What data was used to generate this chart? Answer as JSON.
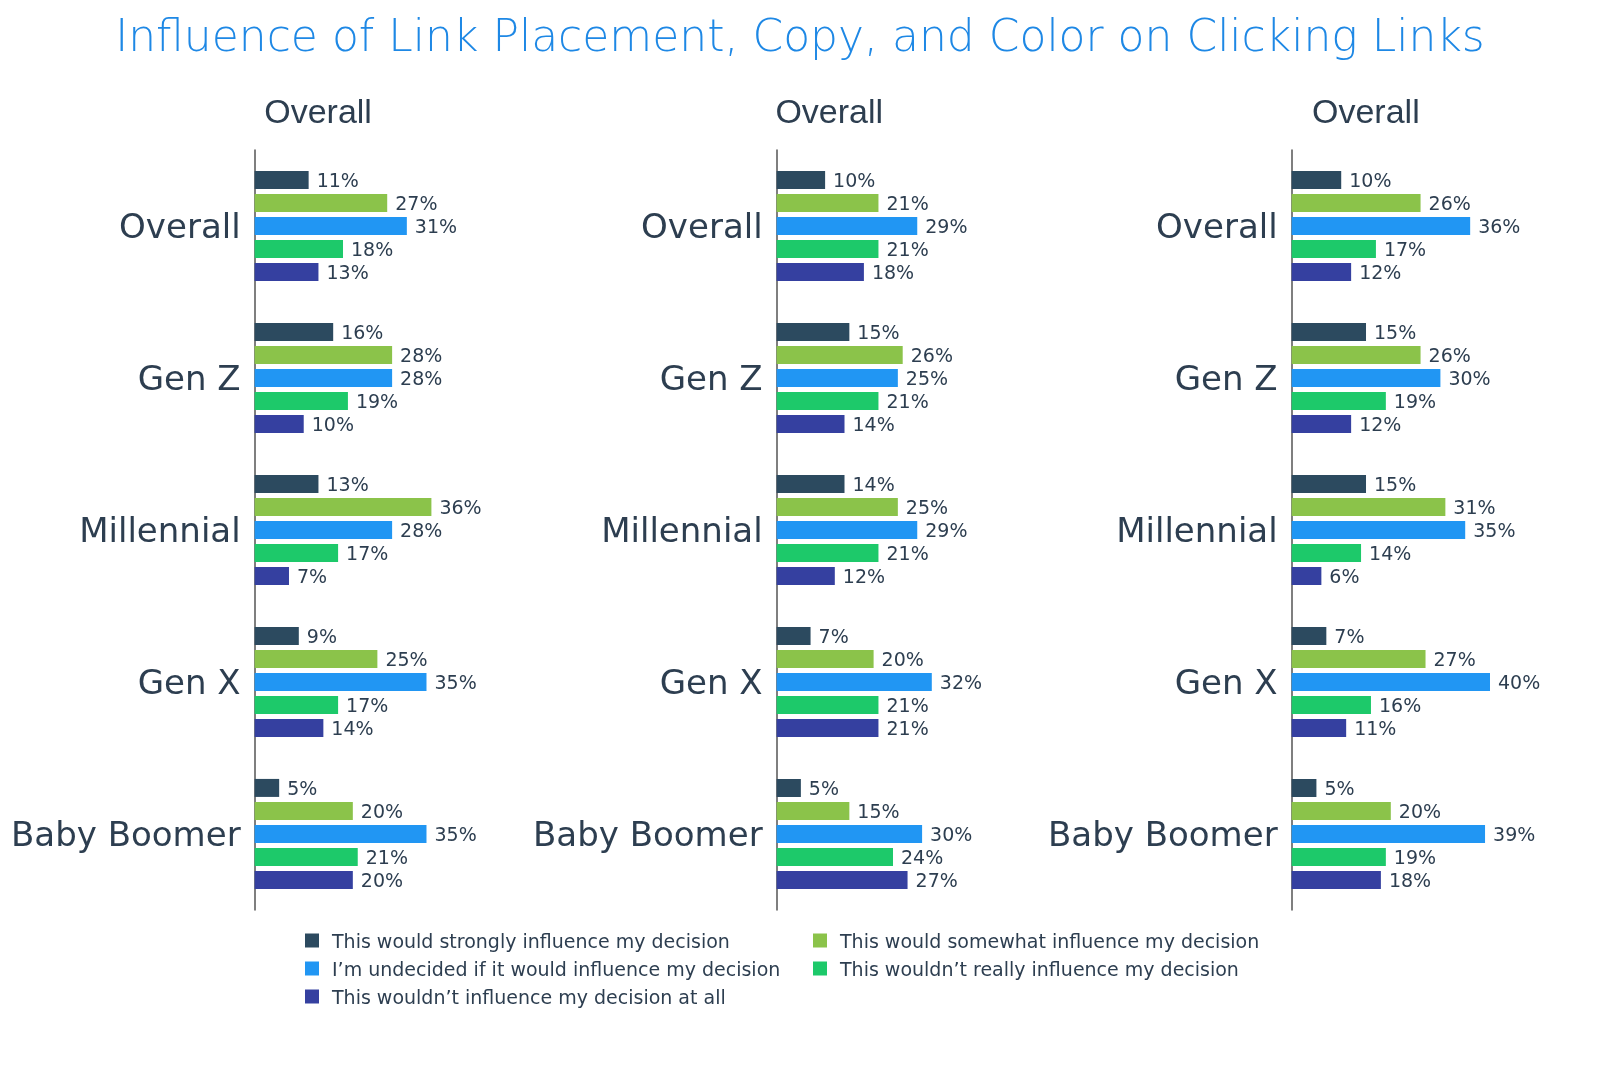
{
  "chart_data": [
    {
      "type": "bar",
      "orientation": "horizontal",
      "title": "Influence of Link Placement, Copy, and Color on Clicking Links",
      "subtitle": "Overall",
      "legend": "bottom",
      "categories": [
        "Overall",
        "Gen Z",
        "Millennial",
        "Gen X",
        "Baby Boomer"
      ],
      "series": [
        {
          "name": "This would strongly influence my decision",
          "color": "#2c4a5f",
          "values": [
            11,
            16,
            13,
            9,
            5
          ],
          "value_labels": [
            "11%",
            "16%",
            "13%",
            "9%",
            "5%"
          ]
        },
        {
          "name": "This would somewhat influence my decision",
          "color": "#8bc34a",
          "values": [
            27,
            28,
            36,
            25,
            20
          ],
          "value_labels": [
            "27%",
            "28%",
            "36%",
            "25%",
            "20%"
          ]
        },
        {
          "name": "I’m undecided if it would influence my decision",
          "color": "#2196f3",
          "values": [
            31,
            28,
            28,
            35,
            35
          ],
          "value_labels": [
            "31%",
            "28%",
            "28%",
            "35%",
            "35%"
          ]
        },
        {
          "name": "This wouldn’t really influence my decision",
          "color": "#1dc96a",
          "values": [
            18,
            19,
            17,
            17,
            21
          ],
          "value_labels": [
            "18%",
            "19%",
            "17%",
            "17%",
            "21%"
          ]
        },
        {
          "name": "This wouldn’t influence my decision at all",
          "color": "#3540a0",
          "values": [
            13,
            10,
            7,
            14,
            20
          ],
          "value_labels": [
            "13%",
            "10%",
            "7%",
            "14%",
            "20%"
          ]
        }
      ]
    },
    {
      "type": "bar",
      "orientation": "horizontal",
      "subtitle": "Overall",
      "categories": [
        "Overall",
        "Gen Z",
        "Millennial",
        "Gen X",
        "Baby Boomer"
      ],
      "series": [
        {
          "color": "#2c4a5f",
          "values": [
            10,
            15,
            14,
            7,
            5
          ],
          "value_labels": [
            "10%",
            "15%",
            "14%",
            "7%",
            "5%"
          ]
        },
        {
          "color": "#8bc34a",
          "values": [
            21,
            26,
            25,
            20,
            15
          ],
          "value_labels": [
            "21%",
            "26%",
            "25%",
            "20%",
            "15%"
          ]
        },
        {
          "color": "#2196f3",
          "values": [
            29,
            25,
            29,
            32,
            30
          ],
          "value_labels": [
            "29%",
            "25%",
            "29%",
            "32%",
            "30%"
          ]
        },
        {
          "color": "#1dc96a",
          "values": [
            21,
            21,
            21,
            21,
            24
          ],
          "value_labels": [
            "21%",
            "21%",
            "21%",
            "21%",
            "24%"
          ]
        },
        {
          "color": "#3540a0",
          "values": [
            18,
            14,
            12,
            21,
            27
          ],
          "value_labels": [
            "18%",
            "14%",
            "12%",
            "21%",
            "27%"
          ]
        }
      ]
    },
    {
      "type": "bar",
      "orientation": "horizontal",
      "subtitle": "Overall",
      "categories": [
        "Overall",
        "Gen Z",
        "Millennial",
        "Gen X",
        "Baby Boomer"
      ],
      "series": [
        {
          "color": "#2c4a5f",
          "values": [
            10,
            15,
            15,
            7,
            5
          ],
          "value_labels": [
            "10%",
            "15%",
            "15%",
            "7%",
            "5%"
          ]
        },
        {
          "color": "#8bc34a",
          "values": [
            26,
            26,
            31,
            27,
            20
          ],
          "value_labels": [
            "26%",
            "26%",
            "31%",
            "27%",
            "20%"
          ]
        },
        {
          "color": "#2196f3",
          "values": [
            36,
            30,
            35,
            40,
            39
          ],
          "value_labels": [
            "36%",
            "30%",
            "35%",
            "40%",
            "39%"
          ]
        },
        {
          "color": "#1dc96a",
          "values": [
            17,
            19,
            14,
            16,
            19
          ],
          "value_labels": [
            "17%",
            "19%",
            "14%",
            "16%",
            "19%"
          ]
        },
        {
          "color": "#3540a0",
          "values": [
            12,
            12,
            6,
            11,
            18
          ],
          "value_labels": [
            "12%",
            "12%",
            "6%",
            "11%",
            "18%"
          ]
        }
      ]
    }
  ]
}
